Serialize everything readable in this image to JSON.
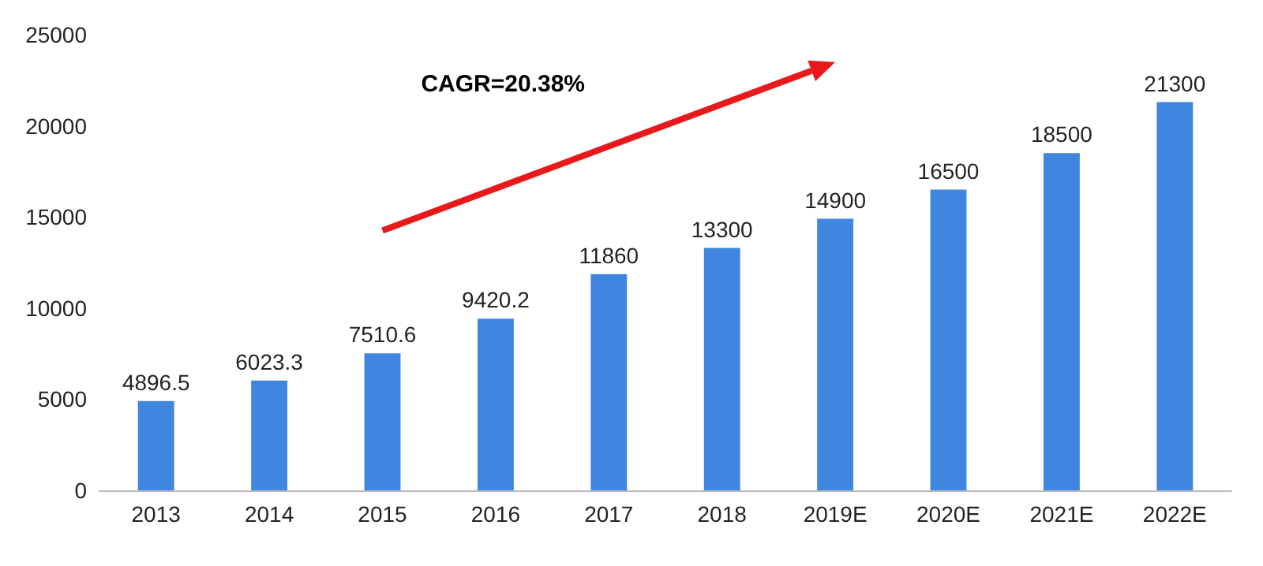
{
  "chart_data": {
    "type": "bar",
    "categories": [
      "2013",
      "2014",
      "2015",
      "2016",
      "2017",
      "2018",
      "2019E",
      "2020E",
      "2021E",
      "2022E"
    ],
    "values": [
      4896.5,
      6023.3,
      7510.6,
      9420.2,
      11860,
      13300,
      14900,
      16500,
      18500,
      21300
    ],
    "color": "#3f86e0",
    "ylim": [
      0,
      25000
    ],
    "yticks": [
      0,
      5000,
      10000,
      15000,
      20000,
      25000
    ],
    "grid": false,
    "data_labels": true,
    "annotations": [
      "CAGR=20.38%"
    ]
  }
}
